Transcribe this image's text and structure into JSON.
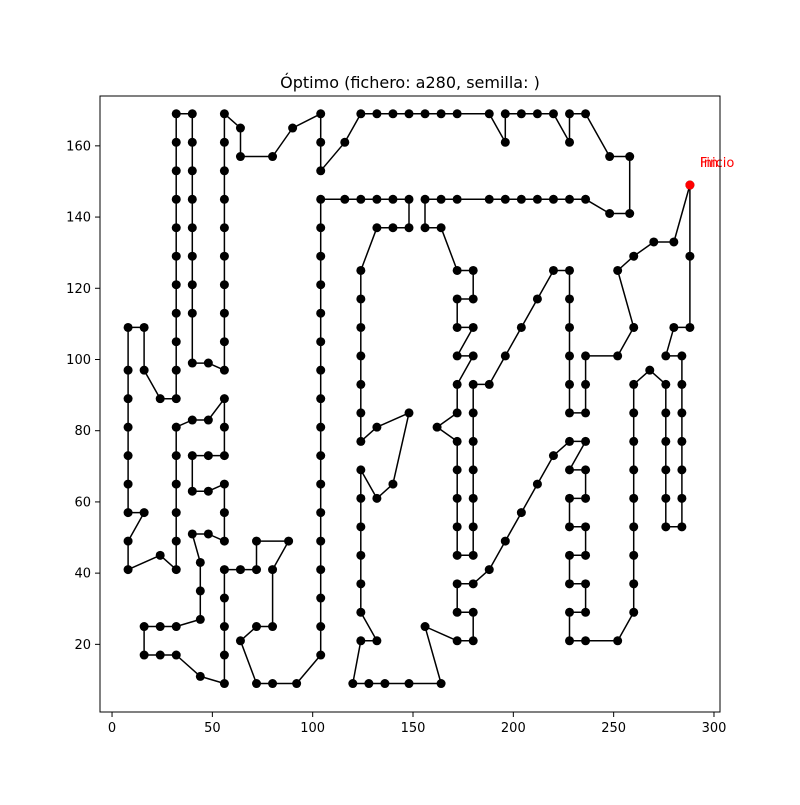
{
  "chart_data": {
    "type": "line",
    "title": "Óptimo (fichero: a280, semilla: )",
    "xlabel": "",
    "ylabel": "",
    "xlim": [
      -6,
      303
    ],
    "ylim": [
      1,
      174
    ],
    "xticks": [
      0,
      50,
      100,
      150,
      200,
      250,
      300
    ],
    "yticks": [
      20,
      40,
      60,
      80,
      100,
      120,
      140,
      160
    ],
    "grid": false,
    "annotations": [
      {
        "text": "Inicio",
        "x": 288,
        "y": 149
      },
      {
        "text": "Fin",
        "x": 288,
        "y": 149
      }
    ],
    "colors": {
      "route": "#000000",
      "start_marker": "#ff0000",
      "annotation": "#ff0000",
      "axes": "#000000"
    },
    "route": [
      [
        288,
        149
      ],
      [
        288,
        129
      ],
      [
        288,
        109
      ],
      [
        280,
        109
      ],
      [
        276,
        101
      ],
      [
        284,
        101
      ],
      [
        284,
        93
      ],
      [
        284,
        85
      ],
      [
        284,
        77
      ],
      [
        284,
        69
      ],
      [
        284,
        61
      ],
      [
        284,
        53
      ],
      [
        276,
        53
      ],
      [
        276,
        61
      ],
      [
        276,
        69
      ],
      [
        276,
        77
      ],
      [
        276,
        85
      ],
      [
        276,
        93
      ],
      [
        268,
        97
      ],
      [
        260,
        93
      ],
      [
        260,
        85
      ],
      [
        260,
        77
      ],
      [
        260,
        69
      ],
      [
        260,
        61
      ],
      [
        260,
        53
      ],
      [
        260,
        45
      ],
      [
        260,
        37
      ],
      [
        260,
        29
      ],
      [
        252,
        21
      ],
      [
        236,
        21
      ],
      [
        228,
        21
      ],
      [
        228,
        29
      ],
      [
        236,
        29
      ],
      [
        236,
        37
      ],
      [
        228,
        37
      ],
      [
        228,
        45
      ],
      [
        236,
        45
      ],
      [
        236,
        53
      ],
      [
        228,
        53
      ],
      [
        228,
        61
      ],
      [
        236,
        61
      ],
      [
        236,
        69
      ],
      [
        228,
        69
      ],
      [
        236,
        77
      ],
      [
        228,
        77
      ],
      [
        220,
        73
      ],
      [
        212,
        65
      ],
      [
        204,
        57
      ],
      [
        196,
        49
      ],
      [
        188,
        41
      ],
      [
        180,
        37
      ],
      [
        172,
        37
      ],
      [
        172,
        29
      ],
      [
        180,
        29
      ],
      [
        180,
        21
      ],
      [
        172,
        21
      ],
      [
        156,
        25
      ],
      [
        164,
        9
      ],
      [
        148,
        9
      ],
      [
        136,
        9
      ],
      [
        128,
        9
      ],
      [
        120,
        9
      ],
      [
        124,
        21
      ],
      [
        132,
        21
      ],
      [
        124,
        29
      ],
      [
        124,
        37
      ],
      [
        124,
        45
      ],
      [
        124,
        53
      ],
      [
        124,
        61
      ],
      [
        124,
        69
      ],
      [
        132,
        61
      ],
      [
        140,
        65
      ],
      [
        148,
        85
      ],
      [
        132,
        81
      ],
      [
        124,
        77
      ],
      [
        124,
        85
      ],
      [
        124,
        93
      ],
      [
        124,
        101
      ],
      [
        124,
        109
      ],
      [
        124,
        117
      ],
      [
        124,
        125
      ],
      [
        132,
        137
      ],
      [
        140,
        137
      ],
      [
        148,
        137
      ],
      [
        148,
        145
      ],
      [
        140,
        145
      ],
      [
        132,
        145
      ],
      [
        124,
        145
      ],
      [
        116,
        145
      ],
      [
        104,
        145
      ],
      [
        104,
        137
      ],
      [
        104,
        129
      ],
      [
        104,
        121
      ],
      [
        104,
        113
      ],
      [
        104,
        105
      ],
      [
        104,
        97
      ],
      [
        104,
        89
      ],
      [
        104,
        81
      ],
      [
        104,
        73
      ],
      [
        104,
        65
      ],
      [
        104,
        57
      ],
      [
        104,
        49
      ],
      [
        104,
        41
      ],
      [
        104,
        33
      ],
      [
        104,
        25
      ],
      [
        104,
        17
      ],
      [
        92,
        9
      ],
      [
        80,
        9
      ],
      [
        72,
        9
      ],
      [
        64,
        21
      ],
      [
        72,
        25
      ],
      [
        80,
        25
      ],
      [
        80,
        41
      ],
      [
        88,
        49
      ],
      [
        72,
        49
      ],
      [
        72,
        41
      ],
      [
        64,
        41
      ],
      [
        56,
        41
      ],
      [
        56,
        33
      ],
      [
        56,
        25
      ],
      [
        56,
        17
      ],
      [
        56,
        9
      ],
      [
        44,
        11
      ],
      [
        32,
        17
      ],
      [
        24,
        17
      ],
      [
        16,
        17
      ],
      [
        16,
        25
      ],
      [
        24,
        25
      ],
      [
        32,
        25
      ],
      [
        44,
        27
      ],
      [
        44,
        35
      ],
      [
        44,
        43
      ],
      [
        40,
        51
      ],
      [
        48,
        51
      ],
      [
        56,
        49
      ],
      [
        56,
        57
      ],
      [
        56,
        65
      ],
      [
        48,
        63
      ],
      [
        40,
        63
      ],
      [
        40,
        73
      ],
      [
        48,
        73
      ],
      [
        56,
        73
      ],
      [
        56,
        81
      ],
      [
        56,
        89
      ],
      [
        48,
        83
      ],
      [
        40,
        83
      ],
      [
        32,
        81
      ],
      [
        32,
        73
      ],
      [
        32,
        65
      ],
      [
        32,
        57
      ],
      [
        32,
        49
      ],
      [
        32,
        41
      ],
      [
        24,
        45
      ],
      [
        8,
        41
      ],
      [
        8,
        49
      ],
      [
        16,
        57
      ],
      [
        8,
        57
      ],
      [
        8,
        65
      ],
      [
        8,
        73
      ],
      [
        8,
        81
      ],
      [
        8,
        89
      ],
      [
        8,
        97
      ],
      [
        8,
        109
      ],
      [
        16,
        109
      ],
      [
        16,
        97
      ],
      [
        24,
        89
      ],
      [
        32,
        89
      ],
      [
        32,
        97
      ],
      [
        32,
        105
      ],
      [
        32,
        113
      ],
      [
        32,
        121
      ],
      [
        32,
        129
      ],
      [
        32,
        137
      ],
      [
        32,
        145
      ],
      [
        32,
        153
      ],
      [
        32,
        161
      ],
      [
        32,
        169
      ],
      [
        40,
        169
      ],
      [
        40,
        161
      ],
      [
        40,
        153
      ],
      [
        40,
        145
      ],
      [
        40,
        137
      ],
      [
        40,
        129
      ],
      [
        40,
        121
      ],
      [
        40,
        113
      ],
      [
        40,
        99
      ],
      [
        48,
        99
      ],
      [
        56,
        97
      ],
      [
        56,
        105
      ],
      [
        56,
        113
      ],
      [
        56,
        121
      ],
      [
        56,
        129
      ],
      [
        56,
        137
      ],
      [
        56,
        145
      ],
      [
        56,
        153
      ],
      [
        56,
        161
      ],
      [
        56,
        169
      ],
      [
        64,
        165
      ],
      [
        64,
        157
      ],
      [
        80,
        157
      ],
      [
        90,
        165
      ],
      [
        104,
        169
      ],
      [
        104,
        161
      ],
      [
        104,
        153
      ],
      [
        116,
        161
      ],
      [
        124,
        169
      ],
      [
        132,
        169
      ],
      [
        140,
        169
      ],
      [
        148,
        169
      ],
      [
        156,
        169
      ],
      [
        164,
        169
      ],
      [
        172,
        169
      ],
      [
        188,
        169
      ],
      [
        196,
        161
      ],
      [
        196,
        169
      ],
      [
        204,
        169
      ],
      [
        212,
        169
      ],
      [
        220,
        169
      ],
      [
        228,
        161
      ],
      [
        228,
        169
      ],
      [
        236,
        169
      ],
      [
        248,
        157
      ],
      [
        258,
        157
      ],
      [
        258,
        141
      ],
      [
        248,
        141
      ],
      [
        236,
        145
      ],
      [
        228,
        145
      ],
      [
        220,
        145
      ],
      [
        212,
        145
      ],
      [
        204,
        145
      ],
      [
        196,
        145
      ],
      [
        188,
        145
      ],
      [
        172,
        145
      ],
      [
        164,
        145
      ],
      [
        156,
        145
      ],
      [
        156,
        137
      ],
      [
        164,
        137
      ],
      [
        172,
        125
      ],
      [
        180,
        125
      ],
      [
        180,
        117
      ],
      [
        172,
        117
      ],
      [
        172,
        109
      ],
      [
        180,
        109
      ],
      [
        172,
        101
      ],
      [
        180,
        101
      ],
      [
        172,
        93
      ],
      [
        172,
        85
      ],
      [
        162,
        81
      ],
      [
        172,
        77
      ],
      [
        172,
        69
      ],
      [
        172,
        61
      ],
      [
        172,
        53
      ],
      [
        172,
        45
      ],
      [
        180,
        45
      ],
      [
        180,
        53
      ],
      [
        180,
        61
      ],
      [
        180,
        69
      ],
      [
        180,
        77
      ],
      [
        180,
        85
      ],
      [
        180,
        93
      ],
      [
        188,
        93
      ],
      [
        196,
        101
      ],
      [
        204,
        109
      ],
      [
        212,
        117
      ],
      [
        220,
        125
      ],
      [
        228,
        125
      ],
      [
        228,
        117
      ],
      [
        228,
        109
      ],
      [
        228,
        101
      ],
      [
        228,
        93
      ],
      [
        228,
        85
      ],
      [
        236,
        85
      ],
      [
        236,
        93
      ],
      [
        236,
        101
      ],
      [
        252,
        101
      ],
      [
        260,
        109
      ],
      [
        252,
        125
      ],
      [
        260,
        129
      ],
      [
        270,
        133
      ],
      [
        280,
        133
      ],
      [
        288,
        149
      ]
    ]
  }
}
